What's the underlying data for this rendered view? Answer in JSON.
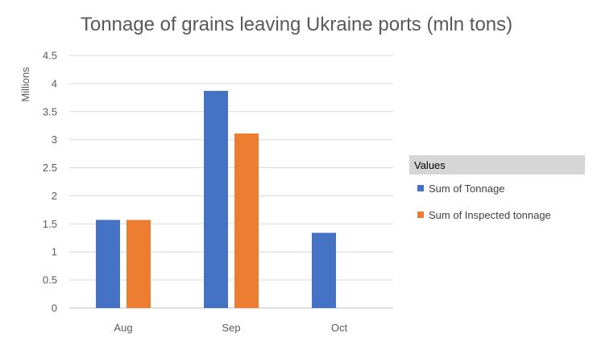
{
  "chart_data": {
    "type": "bar",
    "title": "Tonnage of grains leaving Ukraine ports (mln tons)",
    "ylabel": "Millions",
    "xlabel": "",
    "categories": [
      "Aug",
      "Sep",
      "Oct"
    ],
    "series": [
      {
        "name": "Sum of Tonnage",
        "values": [
          1.57,
          3.87,
          1.34
        ],
        "color": "#4472C4"
      },
      {
        "name": "Sum of Inspected tonnage",
        "values": [
          1.57,
          3.11,
          null
        ],
        "color": "#ED7D31"
      }
    ],
    "ylim": [
      0,
      4.5
    ],
    "yticks": [
      "0",
      "0.5",
      "1",
      "1.5",
      "2",
      "2.5",
      "3",
      "3.5",
      "4",
      "4.5"
    ],
    "grid": true,
    "legend": {
      "title": "Values",
      "placement": "right"
    }
  }
}
